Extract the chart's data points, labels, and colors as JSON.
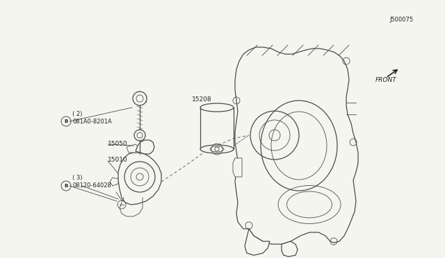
{
  "bg_color": "#f5f5f0",
  "line_color": "#4a4a4a",
  "text_color": "#222222",
  "figsize": [
    6.4,
    3.72
  ],
  "dpi": 100,
  "labels": {
    "b1_text1": "08120-64028",
    "b1_text2": "( 3)",
    "b2_text1": "081A0-8201A",
    "b2_text2": "( 2)",
    "part1": "15010",
    "part2": "15050",
    "part3": "15208",
    "front": "FRONT",
    "diagram_id": "J500075"
  }
}
